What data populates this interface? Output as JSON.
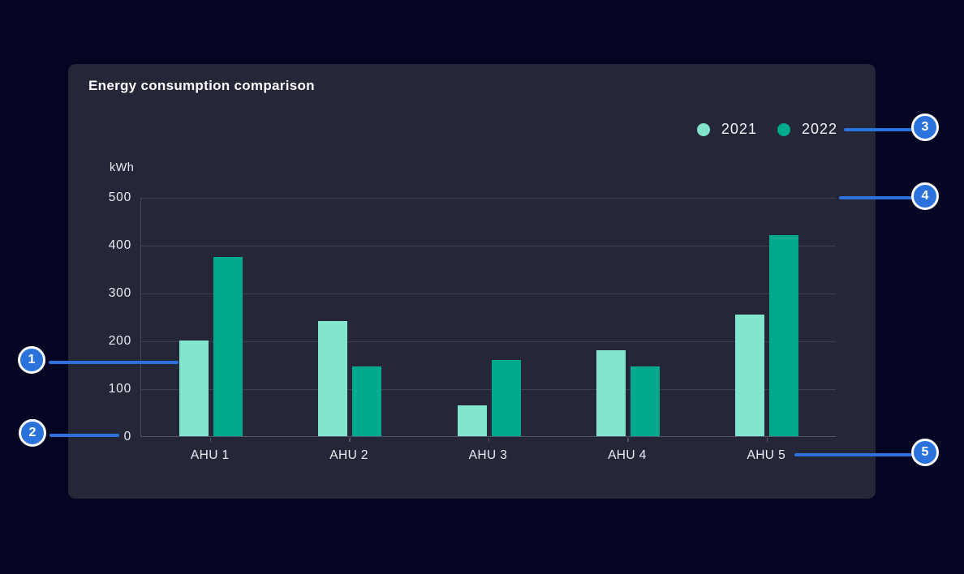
{
  "card": {
    "title": "Energy consumption comparison"
  },
  "legend": {
    "items": [
      {
        "label": "2021",
        "color": "#81e6cd"
      },
      {
        "label": "2022",
        "color": "#00aa8c"
      }
    ]
  },
  "chart_data": {
    "type": "bar",
    "title": "Energy consumption comparison",
    "ylabel": "kWh",
    "xlabel": "",
    "categories": [
      "AHU 1",
      "AHU 2",
      "AHU 3",
      "AHU 4",
      "AHU 5"
    ],
    "series": [
      {
        "name": "2021",
        "color": "#81e6cd",
        "values": [
          200,
          240,
          65,
          180,
          255
        ]
      },
      {
        "name": "2022",
        "color": "#00aa8c",
        "values": [
          375,
          145,
          160,
          145,
          420
        ]
      }
    ],
    "ylim": [
      0,
      500
    ],
    "yticks": [
      0,
      100,
      200,
      300,
      400,
      500
    ],
    "grid": true,
    "legend_position": "top-right"
  },
  "callouts": {
    "badge_color": "#2b72dc",
    "items": [
      {
        "number": "1"
      },
      {
        "number": "2"
      },
      {
        "number": "3"
      },
      {
        "number": "4"
      },
      {
        "number": "5"
      }
    ]
  },
  "colors": {
    "page_background": "#040423",
    "card_background": "#262639",
    "gridline": "#3e3e56",
    "axis": "#55556c",
    "text": "#ededf2",
    "title_text": "#ffffff",
    "callout_blue": "#2b72dc",
    "series_2021": "#81e6cd",
    "series_2022": "#00aa8c"
  }
}
